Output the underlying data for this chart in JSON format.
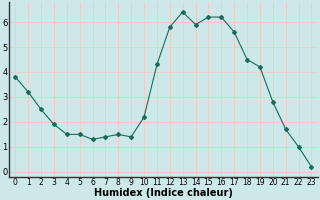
{
  "x": [
    0,
    1,
    2,
    3,
    4,
    5,
    6,
    7,
    8,
    9,
    10,
    11,
    12,
    13,
    14,
    15,
    16,
    17,
    18,
    19,
    20,
    21,
    22,
    23
  ],
  "y": [
    3.8,
    3.2,
    2.5,
    1.9,
    1.5,
    1.5,
    1.3,
    1.4,
    1.5,
    1.4,
    2.2,
    4.3,
    5.8,
    6.4,
    5.9,
    6.2,
    6.2,
    5.6,
    4.5,
    4.2,
    2.8,
    1.7,
    1.0,
    0.2
  ],
  "xlabel": "Humidex (Indice chaleur)",
  "bg_color": "#cce8e8",
  "grid_color": "#f0c8c8",
  "line_color": "#1a6b5a",
  "marker_color": "#1a6b5a",
  "ylim": [
    -0.2,
    6.8
  ],
  "xlim": [
    -0.5,
    23.5
  ],
  "yticks": [
    0,
    1,
    2,
    3,
    4,
    5,
    6
  ],
  "xticks": [
    0,
    1,
    2,
    3,
    4,
    5,
    6,
    7,
    8,
    9,
    10,
    11,
    12,
    13,
    14,
    15,
    16,
    17,
    18,
    19,
    20,
    21,
    22,
    23
  ],
  "tick_fontsize": 5.5,
  "xlabel_fontsize": 7.0,
  "spine_color": "#555555"
}
